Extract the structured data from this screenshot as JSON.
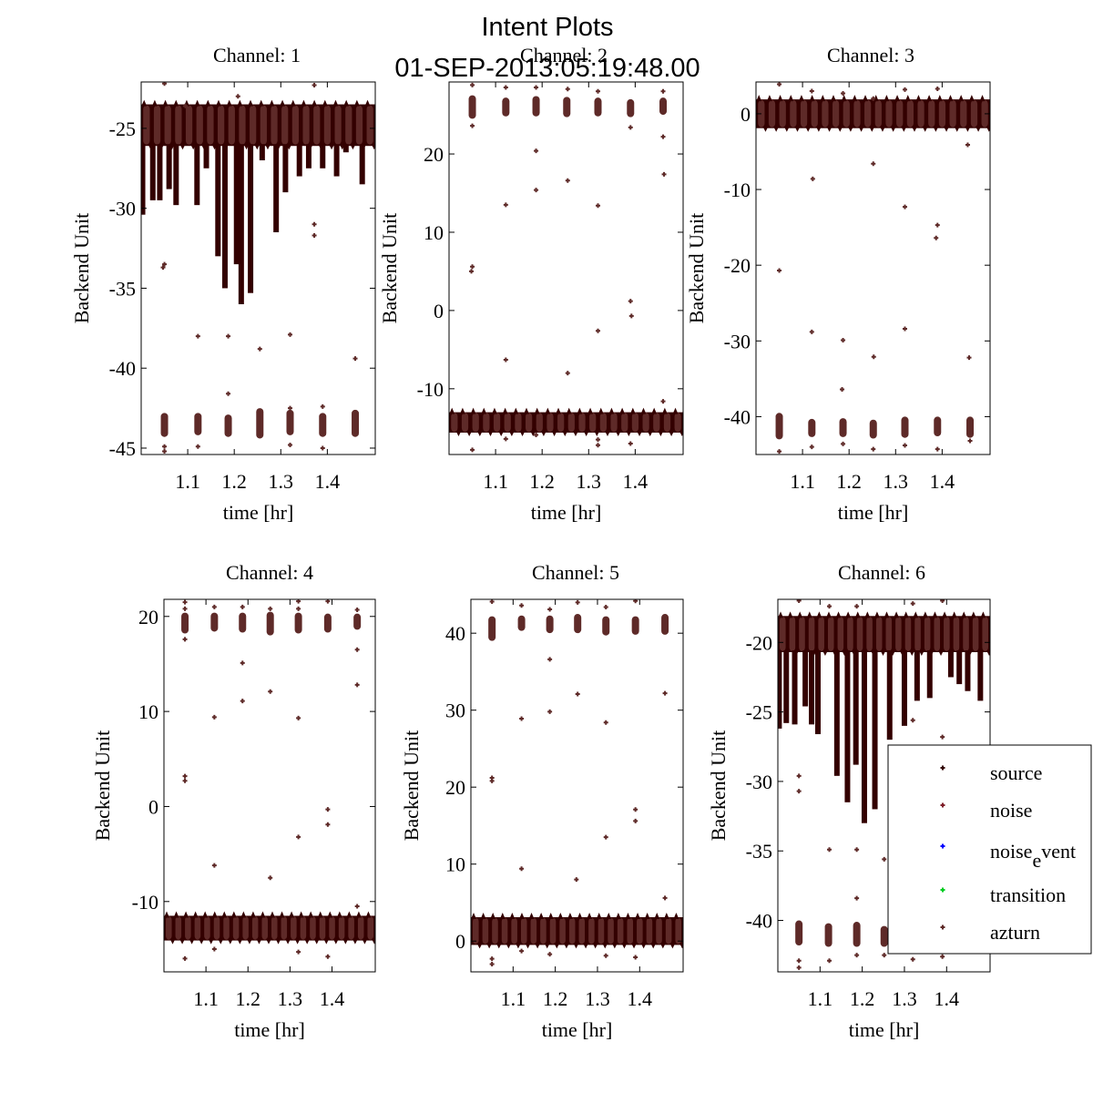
{
  "figure": {
    "title": "Intent Plots",
    "subtitle": "01-SEP-2013:05:19:48.00"
  },
  "colors": {
    "source": "#330000",
    "noise": "#7f1f2a",
    "noise_event": "#0000ff",
    "transition": "#00cc22",
    "azturn": "#5e2a28",
    "axis": "#000000"
  },
  "chart_data": [
    {
      "type": "scatter",
      "title": "Channel: 1",
      "xlabel": "time [hr]",
      "ylabel": "Backend Unit",
      "xlim": [
        1.0,
        1.503
      ],
      "ylim": [
        -45.4,
        -22.1
      ],
      "xticks": [
        1.1,
        1.2,
        1.3,
        1.4
      ],
      "xtick_labels": [
        "1.1",
        "1.2",
        "1.3",
        "1.4"
      ],
      "yticks": [
        -45,
        -40,
        -35,
        -30,
        -25
      ],
      "ytick_labels": [
        "-45",
        "-40",
        "-35",
        "-30",
        "-25"
      ],
      "grid": false,
      "band": {
        "name": "source",
        "center": -24.8,
        "half": 1.3
      },
      "spikes": [
        {
          "x": 1.003,
          "to": -30.4
        },
        {
          "x": 1.025,
          "to": -29.5
        },
        {
          "x": 1.04,
          "to": -29.5
        },
        {
          "x": 1.06,
          "to": -28.8
        },
        {
          "x": 1.075,
          "to": -29.8
        },
        {
          "x": 1.12,
          "to": -29.8
        },
        {
          "x": 1.14,
          "to": -27.5
        },
        {
          "x": 1.165,
          "to": -33.0
        },
        {
          "x": 1.18,
          "to": -35.0
        },
        {
          "x": 1.205,
          "to": -33.5
        },
        {
          "x": 1.215,
          "to": -36.0
        },
        {
          "x": 1.235,
          "to": -35.3
        },
        {
          "x": 1.26,
          "to": -27.0
        },
        {
          "x": 1.29,
          "to": -31.5
        },
        {
          "x": 1.31,
          "to": -29.0
        },
        {
          "x": 1.34,
          "to": -28.0
        },
        {
          "x": 1.36,
          "to": -27.5
        },
        {
          "x": 1.39,
          "to": -27.5
        },
        {
          "x": 1.42,
          "to": -28.0
        },
        {
          "x": 1.44,
          "to": -26.5
        },
        {
          "x": 1.475,
          "to": -28.5
        }
      ],
      "azturn_bands": [
        {
          "x": 1.05,
          "lo": -44.3,
          "hi": -42.8
        },
        {
          "x": 1.122,
          "lo": -44.2,
          "hi": -42.8
        },
        {
          "x": 1.187,
          "lo": -44.3,
          "hi": -42.9
        },
        {
          "x": 1.255,
          "lo": -44.4,
          "hi": -42.5
        },
        {
          "x": 1.32,
          "lo": -44.2,
          "hi": -42.6
        },
        {
          "x": 1.39,
          "lo": -44.3,
          "hi": -42.8
        },
        {
          "x": 1.46,
          "lo": -44.3,
          "hi": -42.6
        }
      ],
      "outliers": [
        [
          1.05,
          -33.5
        ],
        [
          1.047,
          -33.7
        ],
        [
          1.122,
          -38.0
        ],
        [
          1.187,
          -38.0
        ],
        [
          1.187,
          -41.6
        ],
        [
          1.255,
          -38.8
        ],
        [
          1.32,
          -37.9
        ],
        [
          1.46,
          -39.4
        ],
        [
          1.05,
          -45.2
        ],
        [
          1.05,
          -44.9
        ],
        [
          1.122,
          -44.9
        ],
        [
          1.32,
          -44.8
        ],
        [
          1.39,
          -45.0
        ],
        [
          1.39,
          -42.4
        ],
        [
          1.32,
          -42.5
        ],
        [
          1.372,
          -31.0
        ],
        [
          1.372,
          -31.7
        ],
        [
          1.095,
          -23.6
        ],
        [
          1.208,
          -23.0
        ],
        [
          1.372,
          -22.3
        ],
        [
          1.05,
          -22.2
        ]
      ]
    },
    {
      "type": "scatter",
      "title": "Channel: 2",
      "xlabel": "time [hr]",
      "ylabel": "Backend Unit",
      "xlim": [
        1.0,
        1.503
      ],
      "ylim": [
        -18.4,
        29.2
      ],
      "xticks": [
        1.1,
        1.2,
        1.3,
        1.4
      ],
      "xtick_labels": [
        "1.1",
        "1.2",
        "1.3",
        "1.4"
      ],
      "yticks": [
        -10,
        0,
        10,
        20
      ],
      "ytick_labels": [
        "-10",
        "0",
        "10",
        "20"
      ],
      "grid": false,
      "band": {
        "name": "source",
        "center": -14.3,
        "half": 1.3
      },
      "spikes": [],
      "azturn_bands": [
        {
          "x": 1.05,
          "lo": 24.5,
          "hi": 27.5
        },
        {
          "x": 1.122,
          "lo": 24.8,
          "hi": 27.2
        },
        {
          "x": 1.187,
          "lo": 24.8,
          "hi": 27.4
        },
        {
          "x": 1.253,
          "lo": 24.7,
          "hi": 27.3
        },
        {
          "x": 1.32,
          "lo": 24.8,
          "hi": 27.2
        },
        {
          "x": 1.39,
          "lo": 24.7,
          "hi": 27.0
        },
        {
          "x": 1.46,
          "lo": 25.0,
          "hi": 27.2
        }
      ],
      "outliers": [
        [
          1.05,
          23.6
        ],
        [
          1.05,
          5.6
        ],
        [
          1.048,
          5.0
        ],
        [
          1.122,
          13.5
        ],
        [
          1.122,
          -6.3
        ],
        [
          1.187,
          20.4
        ],
        [
          1.187,
          15.4
        ],
        [
          1.255,
          16.6
        ],
        [
          1.255,
          -8.0
        ],
        [
          1.32,
          13.4
        ],
        [
          1.32,
          -2.6
        ],
        [
          1.39,
          1.2
        ],
        [
          1.392,
          -0.7
        ],
        [
          1.46,
          22.2
        ],
        [
          1.462,
          17.4
        ],
        [
          1.46,
          -11.6
        ],
        [
          1.05,
          28.8
        ],
        [
          1.122,
          28.5
        ],
        [
          1.187,
          28.5
        ],
        [
          1.255,
          28.3
        ],
        [
          1.32,
          28.0
        ],
        [
          1.39,
          23.4
        ],
        [
          1.46,
          28.0
        ],
        [
          1.05,
          -17.8
        ],
        [
          1.122,
          -16.4
        ],
        [
          1.187,
          -15.9
        ],
        [
          1.32,
          -16.5
        ],
        [
          1.39,
          -17.0
        ],
        [
          1.32,
          -17.2
        ]
      ]
    },
    {
      "type": "scatter",
      "title": "Channel: 3",
      "xlabel": "time [hr]",
      "ylabel": "Backend Unit",
      "xlim": [
        1.0,
        1.503
      ],
      "ylim": [
        -45.0,
        4.2
      ],
      "xticks": [
        1.1,
        1.2,
        1.3,
        1.4
      ],
      "xtick_labels": [
        "1.1",
        "1.2",
        "1.3",
        "1.4"
      ],
      "yticks": [
        -40,
        -30,
        -20,
        -10,
        0
      ],
      "ytick_labels": [
        "-40",
        "-30",
        "-20",
        "-10",
        "0"
      ],
      "grid": false,
      "band": {
        "name": "source",
        "center": 0.0,
        "half": 1.9
      },
      "spikes": [],
      "azturn_bands": [
        {
          "x": 1.05,
          "lo": -43.0,
          "hi": -39.5
        },
        {
          "x": 1.12,
          "lo": -42.7,
          "hi": -40.3
        },
        {
          "x": 1.187,
          "lo": -42.7,
          "hi": -40.2
        },
        {
          "x": 1.252,
          "lo": -42.9,
          "hi": -40.4
        },
        {
          "x": 1.32,
          "lo": -42.8,
          "hi": -40.0
        },
        {
          "x": 1.39,
          "lo": -42.6,
          "hi": -40.0
        },
        {
          "x": 1.46,
          "lo": -42.8,
          "hi": -40.0
        }
      ],
      "outliers": [
        [
          1.05,
          -20.7
        ],
        [
          1.122,
          -8.6
        ],
        [
          1.12,
          -28.8
        ],
        [
          1.187,
          -29.9
        ],
        [
          1.185,
          -36.4
        ],
        [
          1.252,
          -6.6
        ],
        [
          1.253,
          -32.1
        ],
        [
          1.32,
          -12.3
        ],
        [
          1.32,
          -28.4
        ],
        [
          1.39,
          -14.7
        ],
        [
          1.387,
          -16.4
        ],
        [
          1.455,
          -4.1
        ],
        [
          1.458,
          -32.2
        ],
        [
          1.05,
          3.9
        ],
        [
          1.12,
          3.0
        ],
        [
          1.187,
          2.7
        ],
        [
          1.252,
          2.0
        ],
        [
          1.32,
          3.2
        ],
        [
          1.39,
          3.3
        ],
        [
          1.05,
          -44.6
        ],
        [
          1.12,
          -44.0
        ],
        [
          1.187,
          -43.6
        ],
        [
          1.252,
          -44.3
        ],
        [
          1.32,
          -43.8
        ],
        [
          1.39,
          -44.3
        ],
        [
          1.46,
          -43.2
        ]
      ]
    },
    {
      "type": "scatter",
      "title": "Channel: 4",
      "xlabel": "time [hr]",
      "ylabel": "Backend Unit",
      "xlim": [
        1.0,
        1.503
      ],
      "ylim": [
        -17.4,
        21.8
      ],
      "xticks": [
        1.1,
        1.2,
        1.3,
        1.4
      ],
      "xtick_labels": [
        "1.1",
        "1.2",
        "1.3",
        "1.4"
      ],
      "yticks": [
        -10,
        0,
        10,
        20
      ],
      "ytick_labels": [
        "-10",
        "0",
        "10",
        "20"
      ],
      "grid": false,
      "band": {
        "name": "source",
        "center": -12.8,
        "half": 1.3
      },
      "spikes": [],
      "azturn_bands": [
        {
          "x": 1.05,
          "lo": 18.2,
          "hi": 20.4
        },
        {
          "x": 1.12,
          "lo": 18.4,
          "hi": 20.4
        },
        {
          "x": 1.187,
          "lo": 18.3,
          "hi": 20.4
        },
        {
          "x": 1.253,
          "lo": 18.0,
          "hi": 20.5
        },
        {
          "x": 1.32,
          "lo": 18.2,
          "hi": 20.4
        },
        {
          "x": 1.39,
          "lo": 18.3,
          "hi": 20.3
        },
        {
          "x": 1.46,
          "lo": 18.6,
          "hi": 20.3
        }
      ],
      "outliers": [
        [
          1.05,
          17.6
        ],
        [
          1.05,
          3.2
        ],
        [
          1.05,
          2.7
        ],
        [
          1.12,
          9.4
        ],
        [
          1.12,
          -6.2
        ],
        [
          1.187,
          15.1
        ],
        [
          1.187,
          11.1
        ],
        [
          1.253,
          12.1
        ],
        [
          1.253,
          -7.5
        ],
        [
          1.32,
          9.3
        ],
        [
          1.32,
          -3.2
        ],
        [
          1.39,
          -0.3
        ],
        [
          1.39,
          -1.9
        ],
        [
          1.46,
          16.5
        ],
        [
          1.46,
          12.8
        ],
        [
          1.46,
          -10.5
        ],
        [
          1.05,
          21.5
        ],
        [
          1.05,
          20.8
        ],
        [
          1.12,
          21.0
        ],
        [
          1.187,
          21.0
        ],
        [
          1.253,
          20.8
        ],
        [
          1.32,
          21.6
        ],
        [
          1.32,
          20.8
        ],
        [
          1.39,
          21.6
        ],
        [
          1.46,
          20.7
        ],
        [
          1.05,
          -16.0
        ],
        [
          1.12,
          -15.0
        ],
        [
          1.32,
          -15.3
        ],
        [
          1.39,
          -15.8
        ]
      ]
    },
    {
      "type": "scatter",
      "title": "Channel: 5",
      "xlabel": "time [hr]",
      "ylabel": "Backend Unit",
      "xlim": [
        1.0,
        1.503
      ],
      "ylim": [
        -4.0,
        44.4
      ],
      "xticks": [
        1.1,
        1.2,
        1.3,
        1.4
      ],
      "xtick_labels": [
        "1.1",
        "1.2",
        "1.3",
        "1.4"
      ],
      "yticks": [
        0,
        10,
        20,
        30,
        40
      ],
      "ytick_labels": [
        "0",
        "10",
        "20",
        "30",
        "40"
      ],
      "grid": false,
      "band": {
        "name": "source",
        "center": 1.3,
        "half": 1.8
      },
      "spikes": [],
      "azturn_bands": [
        {
          "x": 1.05,
          "lo": 39.0,
          "hi": 42.2
        },
        {
          "x": 1.12,
          "lo": 40.3,
          "hi": 42.3
        },
        {
          "x": 1.187,
          "lo": 40.0,
          "hi": 42.3
        },
        {
          "x": 1.253,
          "lo": 40.0,
          "hi": 42.5
        },
        {
          "x": 1.32,
          "lo": 39.7,
          "hi": 42.2
        },
        {
          "x": 1.39,
          "lo": 39.8,
          "hi": 42.2
        },
        {
          "x": 1.46,
          "lo": 39.8,
          "hi": 42.5
        }
      ],
      "outliers": [
        [
          1.05,
          21.2
        ],
        [
          1.05,
          20.8
        ],
        [
          1.12,
          28.9
        ],
        [
          1.12,
          9.4
        ],
        [
          1.187,
          36.6
        ],
        [
          1.187,
          29.8
        ],
        [
          1.253,
          32.1
        ],
        [
          1.25,
          8.0
        ],
        [
          1.32,
          28.4
        ],
        [
          1.32,
          13.5
        ],
        [
          1.39,
          17.1
        ],
        [
          1.39,
          15.6
        ],
        [
          1.46,
          32.2
        ],
        [
          1.46,
          5.6
        ],
        [
          1.05,
          44.1
        ],
        [
          1.12,
          43.6
        ],
        [
          1.187,
          43.1
        ],
        [
          1.253,
          44.0
        ],
        [
          1.32,
          43.4
        ],
        [
          1.39,
          44.2
        ],
        [
          1.05,
          -2.3
        ],
        [
          1.05,
          -3.0
        ],
        [
          1.12,
          -1.3
        ],
        [
          1.187,
          -1.7
        ],
        [
          1.32,
          -1.9
        ],
        [
          1.39,
          -2.1
        ]
      ]
    },
    {
      "type": "scatter",
      "title": "Channel: 6",
      "xlabel": "time [hr]",
      "ylabel": "Backend Unit",
      "xlim": [
        1.0,
        1.503
      ],
      "ylim": [
        -43.7,
        -16.9
      ],
      "xticks": [
        1.1,
        1.2,
        1.3,
        1.4
      ],
      "xtick_labels": [
        "1.1",
        "1.2",
        "1.3",
        "1.4"
      ],
      "yticks": [
        -40,
        -35,
        -30,
        -25,
        -20
      ],
      "ytick_labels": [
        "-40",
        "-35",
        "-30",
        "-25",
        "-20"
      ],
      "grid": false,
      "band": {
        "name": "source",
        "center": -19.4,
        "half": 1.3
      },
      "spikes": [
        {
          "x": 1.003,
          "to": -26.2
        },
        {
          "x": 1.02,
          "to": -25.8
        },
        {
          "x": 1.04,
          "to": -25.9
        },
        {
          "x": 1.065,
          "to": -24.6
        },
        {
          "x": 1.08,
          "to": -25.9
        },
        {
          "x": 1.095,
          "to": -26.6
        },
        {
          "x": 1.14,
          "to": -29.6
        },
        {
          "x": 1.165,
          "to": -31.5
        },
        {
          "x": 1.185,
          "to": -28.8
        },
        {
          "x": 1.205,
          "to": -33.0
        },
        {
          "x": 1.23,
          "to": -32.0
        },
        {
          "x": 1.265,
          "to": -27.0
        },
        {
          "x": 1.3,
          "to": -26.0
        },
        {
          "x": 1.33,
          "to": -24.2
        },
        {
          "x": 1.36,
          "to": -24.0
        },
        {
          "x": 1.41,
          "to": -22.5
        },
        {
          "x": 1.43,
          "to": -23.0
        },
        {
          "x": 1.45,
          "to": -23.5
        },
        {
          "x": 1.48,
          "to": -24.2
        }
      ],
      "azturn_bands": [
        {
          "x": 1.05,
          "lo": -41.8,
          "hi": -40.0
        },
        {
          "x": 1.12,
          "lo": -41.9,
          "hi": -40.2
        },
        {
          "x": 1.187,
          "lo": -41.9,
          "hi": -40.1
        },
        {
          "x": 1.252,
          "lo": -41.9,
          "hi": -40.4
        }
      ],
      "outliers": [
        [
          1.05,
          -29.6
        ],
        [
          1.05,
          -30.7
        ],
        [
          1.122,
          -34.9
        ],
        [
          1.187,
          -34.9
        ],
        [
          1.187,
          -38.4
        ],
        [
          1.252,
          -35.6
        ],
        [
          1.32,
          -25.6
        ],
        [
          1.39,
          -26.8
        ],
        [
          1.05,
          -42.9
        ],
        [
          1.05,
          -43.4
        ],
        [
          1.122,
          -42.9
        ],
        [
          1.187,
          -42.5
        ],
        [
          1.252,
          -42.5
        ],
        [
          1.32,
          -42.2
        ],
        [
          1.32,
          -42.8
        ],
        [
          1.39,
          -42.0
        ],
        [
          1.39,
          -42.6
        ],
        [
          1.46,
          -42.0
        ],
        [
          1.05,
          -17.0
        ],
        [
          1.122,
          -17.4
        ],
        [
          1.187,
          -17.4
        ],
        [
          1.32,
          -17.2
        ],
        [
          1.39,
          -17.0
        ]
      ]
    }
  ],
  "legend": {
    "placement": "bottom-right of Channel 6",
    "entries": [
      {
        "label": "source",
        "color_key": "source"
      },
      {
        "label": "noise",
        "color_key": "noise"
      },
      {
        "label_main": "noise",
        "label_sub": "e",
        "label_rest": "vent",
        "color_key": "noise_event"
      },
      {
        "label": "transition",
        "color_key": "transition"
      },
      {
        "label": "azturn",
        "color_key": "azturn"
      }
    ]
  }
}
